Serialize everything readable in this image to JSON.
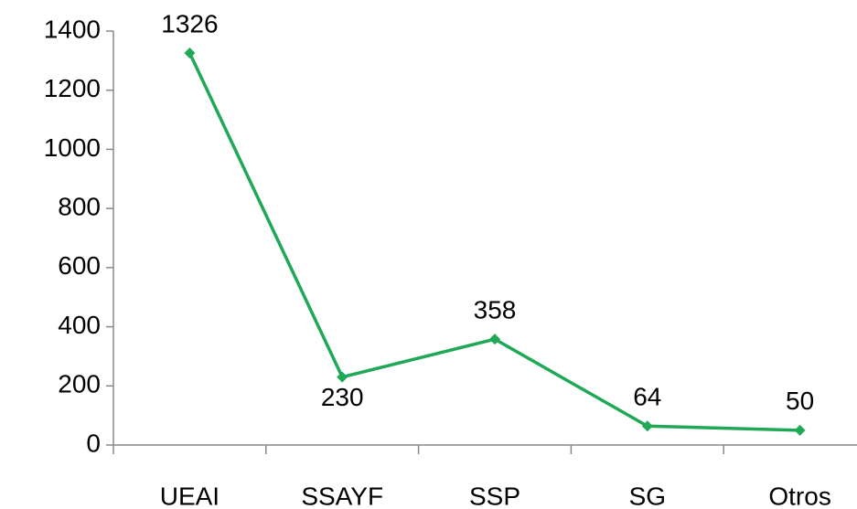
{
  "chart_data": {
    "type": "line",
    "categories": [
      "UEAI",
      "SSAYF",
      "SSP",
      "SG",
      "Otros"
    ],
    "values": [
      1326,
      230,
      358,
      64,
      50
    ],
    "color": "#1fa855",
    "ylim": [
      0,
      1400
    ],
    "yticks": [
      0,
      200,
      400,
      600,
      800,
      1000,
      1200,
      1400
    ],
    "grid": false
  }
}
